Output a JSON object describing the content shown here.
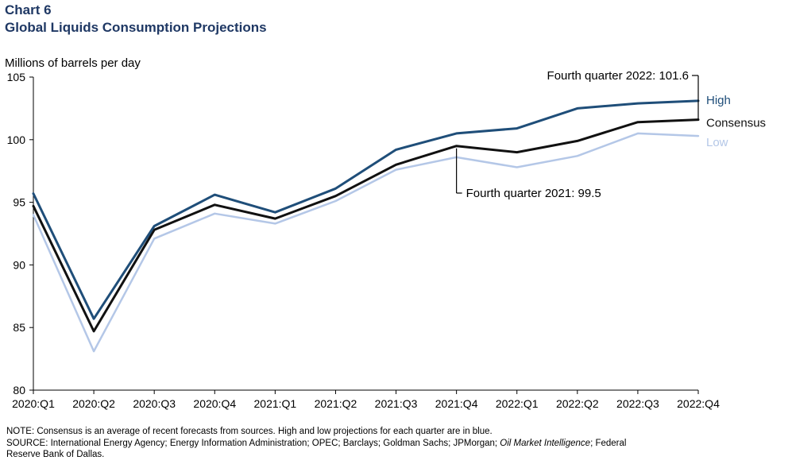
{
  "header": {
    "chart_number": "Chart 6",
    "title": "Global Liquids Consumption Projections"
  },
  "chart_data": {
    "type": "line",
    "title": "Global Liquids Consumption Projections",
    "ylabel": "Millions of barrels per day",
    "xlabel": "",
    "ylim": [
      80,
      105
    ],
    "yticks": [
      80,
      85,
      90,
      95,
      100,
      105
    ],
    "grid": false,
    "categories": [
      "2020:Q1",
      "2020:Q2",
      "2020:Q3",
      "2020:Q4",
      "2021:Q1",
      "2021:Q2",
      "2021:Q3",
      "2021:Q4",
      "2022:Q1",
      "2022:Q2",
      "2022:Q3",
      "2022:Q4"
    ],
    "series": [
      {
        "name": "Low",
        "color": "#b4c7e7",
        "width": 2.5,
        "values": [
          94.0,
          83.1,
          92.1,
          94.1,
          93.3,
          95.1,
          97.6,
          98.6,
          97.8,
          98.7,
          100.5,
          100.3
        ]
      },
      {
        "name": "Consensus",
        "color": "#111111",
        "width": 3,
        "values": [
          94.7,
          84.7,
          92.8,
          94.8,
          93.7,
          95.5,
          98.0,
          99.5,
          99.0,
          99.9,
          101.4,
          101.6
        ]
      },
      {
        "name": "High",
        "color": "#1f4e79",
        "width": 3,
        "values": [
          95.7,
          85.7,
          93.1,
          95.6,
          94.2,
          96.1,
          99.2,
          100.5,
          100.9,
          102.5,
          102.9,
          103.1
        ]
      }
    ],
    "annotations": [
      {
        "text": "Fourth quarter 2022: 101.6",
        "category": "2022:Q4",
        "value": 101.6
      },
      {
        "text": "Fourth quarter 2021: 99.5",
        "category": "2021:Q4",
        "value": 99.5
      }
    ]
  },
  "footer": {
    "note": "NOTE: Consensus is an average  of recent forecasts from sources. High and low projections for each quarter are in blue.",
    "source_prefix": "SOURCE: International  Energy Agency; Energy Information  Administration; OPEC; Barclays; Goldman Sachs; JPMorgan; ",
    "source_italic": "Oil Market Intelligence",
    "source_suffix": "; Federal",
    "source_line2": "Reserve  Bank of Dallas."
  }
}
